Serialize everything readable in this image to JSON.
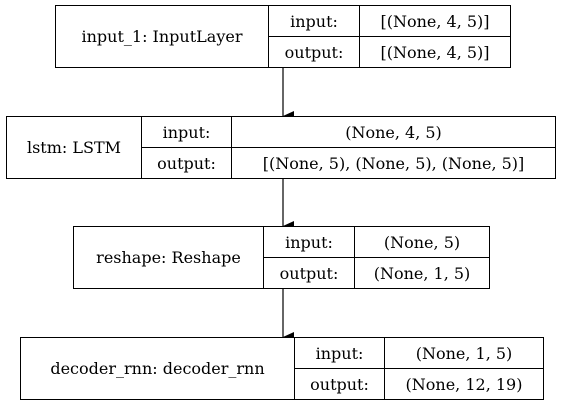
{
  "nodes": [
    {
      "name": "input_1: InputLayer",
      "input_label": "input:",
      "output_label": "output:",
      "input_value": "[(None, 4, 5)]",
      "output_value": "[(None, 4, 5)]"
    },
    {
      "name": "lstm: LSTM",
      "input_label": "input:",
      "output_label": "output:",
      "input_value": "(None, 4, 5)",
      "output_value": "[(None, 5), (None, 5), (None, 5)]"
    },
    {
      "name": "reshape: Reshape",
      "input_label": "input:",
      "output_label": "output:",
      "input_value": "(None, 5)",
      "output_value": "(None, 1, 5)"
    },
    {
      "name": "decoder_rnn: decoder_rnn",
      "input_label": "input:",
      "output_label": "output:",
      "input_value": "(None, 1, 5)",
      "output_value": "(None, 12, 19)"
    }
  ]
}
